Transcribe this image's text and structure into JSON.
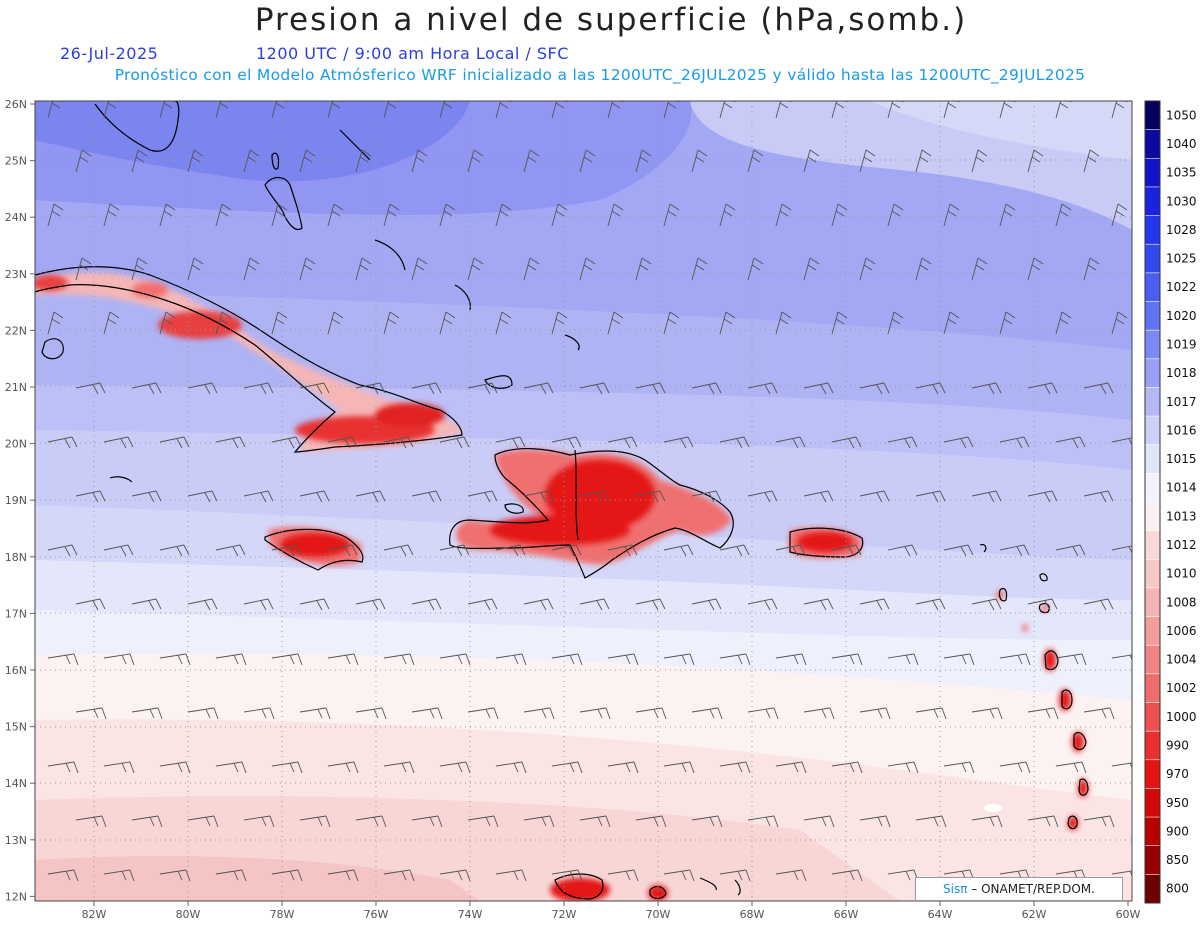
{
  "title": "Presion a nivel de superficie (hPa,somb.)",
  "date": "26-Jul-2025",
  "time": "1200 UTC / 9:00 am Hora Local / SFC",
  "forecast_line": "Pronóstico con el Modelo Atmósferico WRF inicializado a las 1200UTC_26JUL2025 y válido hasta las  1200UTC_29JUL2025",
  "lat_labels": [
    "26N",
    "25N",
    "24N",
    "23N",
    "22N",
    "21N",
    "20N",
    "19N",
    "18N",
    "17N",
    "16N",
    "15N",
    "14N",
    "13N",
    "12N"
  ],
  "lon_labels": [
    "82W",
    "80W",
    "78W",
    "76W",
    "74W",
    "72W",
    "70W",
    "68W",
    "66W",
    "64W",
    "62W",
    "60W"
  ],
  "colorbar": {
    "levels": [
      "1050",
      "1040",
      "1035",
      "1030",
      "1028",
      "1025",
      "1022",
      "1020",
      "1019",
      "1018",
      "1017",
      "1016",
      "1015",
      "1014",
      "1013",
      "1012",
      "1010",
      "1008",
      "1006",
      "1004",
      "1002",
      "1000",
      "990",
      "970",
      "950",
      "900",
      "850",
      "800"
    ],
    "colors": [
      "#04005c",
      "#0a0aa0",
      "#1212c8",
      "#1a22e0",
      "#2436ee",
      "#3448f0",
      "#4c5ef2",
      "#6272f4",
      "#7c88f4",
      "#9aa0f4",
      "#b4b8f6",
      "#cdd0f8",
      "#e2e4fa",
      "#f2f3fd",
      "#fdf0f0",
      "#f9d8d8",
      "#f7c8c8",
      "#f4b4b4",
      "#f29c9c",
      "#f08484",
      "#ee6c6c",
      "#ec5050",
      "#ea3030",
      "#e41414",
      "#d40808",
      "#b80000",
      "#960000",
      "#6e0000"
    ]
  },
  "colors": {
    "title": "#222222",
    "date_text": "#2a3ee0",
    "forecast_text": "#1a9be8",
    "land_high": "#e01818"
  },
  "credit": {
    "brand": "Sisπ",
    "text": " – ONAMET/REP.DOM."
  }
}
